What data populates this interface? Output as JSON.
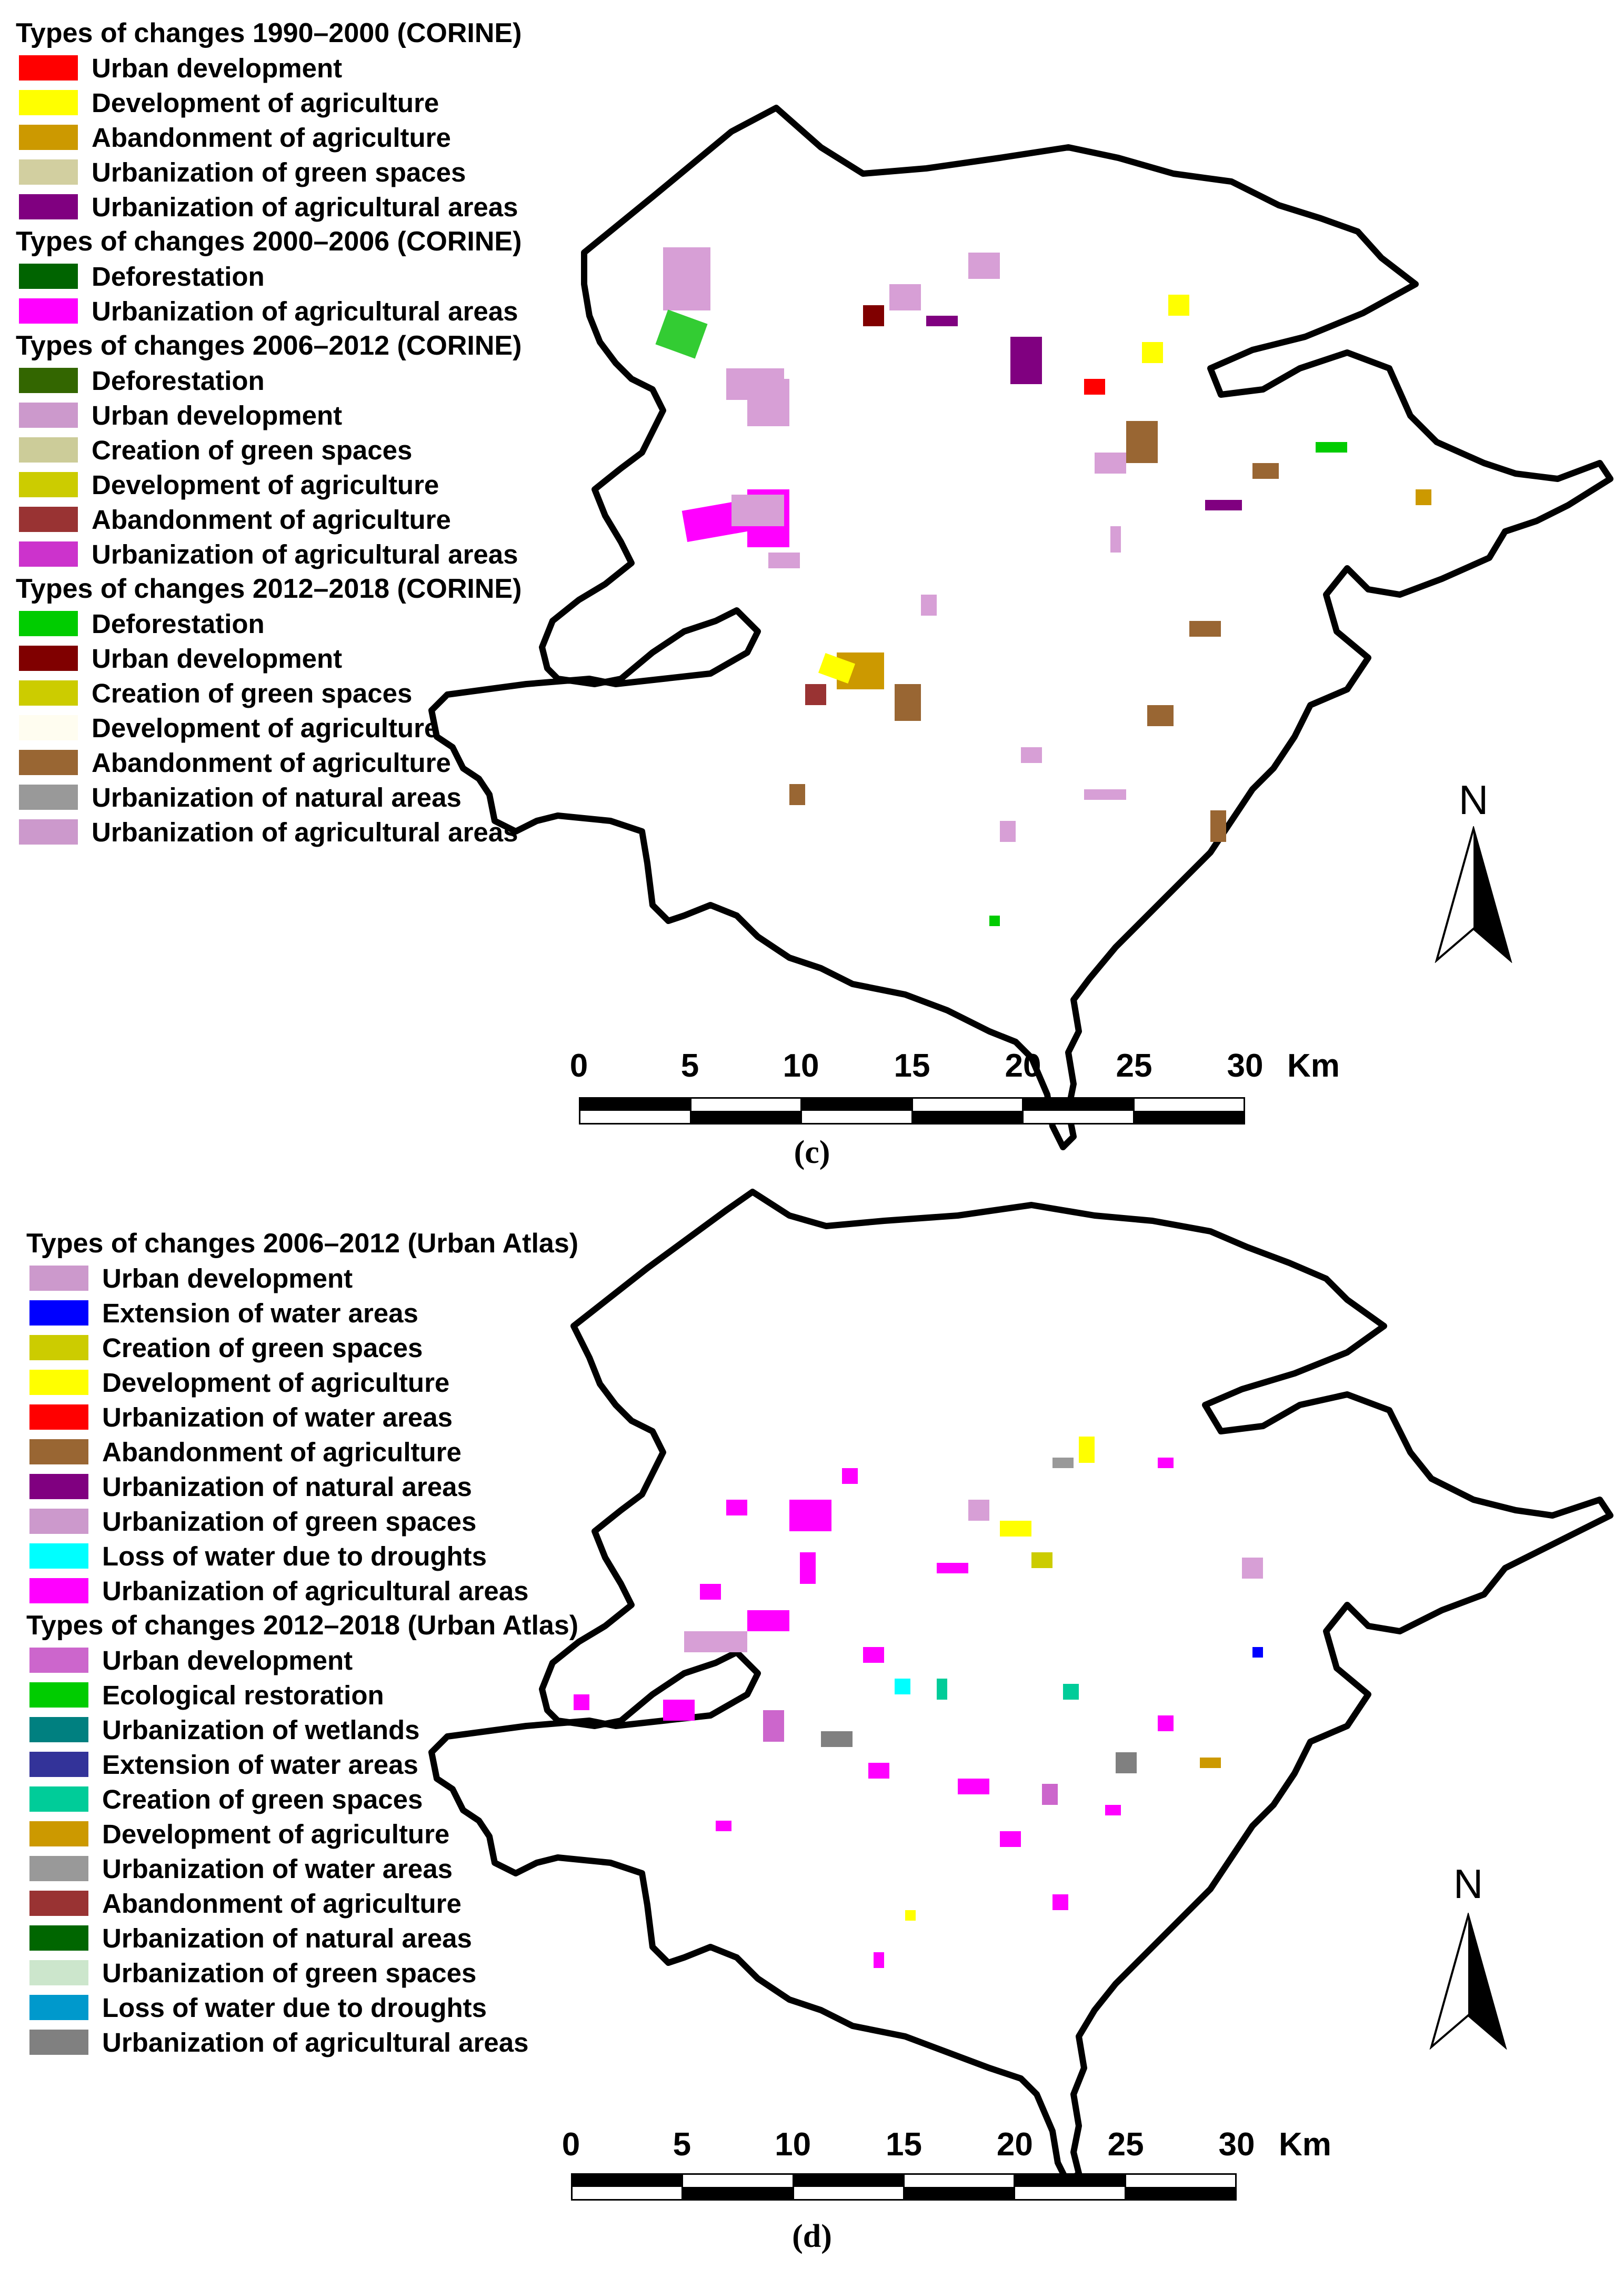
{
  "panel_c": {
    "caption": "(c)",
    "legend": [
      {
        "title": "Types of changes 1990–2000 (CORINE)",
        "items": [
          {
            "label": "Urban development",
            "color": "#ff0000"
          },
          {
            "label": "Development of agriculture",
            "color": "#ffff00"
          },
          {
            "label": "Abandonment of agriculture",
            "color": "#cc9900"
          },
          {
            "label": "Urbanization of green spaces",
            "color": "#d2cfa0"
          },
          {
            "label": "Urbanization of agricultural areas",
            "color": "#800080"
          }
        ]
      },
      {
        "title": "Types of changes 2000–2006 (CORINE)",
        "items": [
          {
            "label": "Deforestation",
            "color": "#006400"
          },
          {
            "label": "Urbanization of agricultural areas",
            "color": "#ff00ff"
          }
        ]
      },
      {
        "title": "Types of changes 2006–2012 (CORINE)",
        "items": [
          {
            "label": "Deforestation",
            "color": "#336600"
          },
          {
            "label": "Urban development",
            "color": "#cc99cc"
          },
          {
            "label": "Creation of green spaces",
            "color": "#cccc99"
          },
          {
            "label": "Development of agriculture",
            "color": "#cccc00"
          },
          {
            "label": "Abandonment of agriculture",
            "color": "#993333"
          },
          {
            "label": "Urbanization of agricultural areas",
            "color": "#cc33cc"
          }
        ]
      },
      {
        "title": "Types of changes 2012–2018 (CORINE)",
        "items": [
          {
            "label": "Deforestation",
            "color": "#00cc00"
          },
          {
            "label": "Urban development",
            "color": "#800000"
          },
          {
            "label": "Creation of green spaces",
            "color": "#cccc00"
          },
          {
            "label": "Development of agriculture",
            "color": "#fffdf0"
          },
          {
            "label": "Abandonment of agriculture",
            "color": "#996633"
          },
          {
            "label": "Urbanization of natural areas",
            "color": "#999999"
          },
          {
            "label": "Urbanization of agricultural areas",
            "color": "#cc99cc"
          }
        ]
      }
    ],
    "scale": {
      "ticks": [
        "0",
        "5",
        "10",
        "15",
        "20",
        "25",
        "30"
      ],
      "unit": "Km"
    },
    "north": "N"
  },
  "panel_d": {
    "caption": "(d)",
    "legend": [
      {
        "title": "Types of changes 2006–2012 (Urban Atlas)",
        "items": [
          {
            "label": "Urban development",
            "color": "#cc99cc"
          },
          {
            "label": "Extension of water areas",
            "color": "#0000ff"
          },
          {
            "label": "Creation of green spaces",
            "color": "#cccc00"
          },
          {
            "label": "Development of agriculture",
            "color": "#ffff00"
          },
          {
            "label": "Urbanization of water areas",
            "color": "#ff0000"
          },
          {
            "label": "Abandonment of agriculture",
            "color": "#996633"
          },
          {
            "label": "Urbanization of natural areas",
            "color": "#800080"
          },
          {
            "label": "Urbanization of green spaces",
            "color": "#cc99cc"
          },
          {
            "label": "Loss of water due to droughts",
            "color": "#00ffff"
          },
          {
            "label": "Urbanization of agricultural areas",
            "color": "#ff00ff"
          }
        ]
      },
      {
        "title": "Types of changes 2012–2018 (Urban Atlas)",
        "items": [
          {
            "label": "Urban development",
            "color": "#cc66cc"
          },
          {
            "label": "Ecological restoration",
            "color": "#00cc00"
          },
          {
            "label": "Urbanization of wetlands",
            "color": "#008080"
          },
          {
            "label": "Extension of water areas",
            "color": "#333399"
          },
          {
            "label": "Creation of green spaces",
            "color": "#00cc99"
          },
          {
            "label": "Development of agriculture",
            "color": "#cc9900"
          },
          {
            "label": "Urbanization of water areas",
            "color": "#999999"
          },
          {
            "label": "Abandonment of agriculture",
            "color": "#993333"
          },
          {
            "label": "Urbanization of natural areas",
            "color": "#006600"
          },
          {
            "label": "Urbanization of green spaces",
            "color": "#cce6cc"
          },
          {
            "label": "Loss of water due to droughts",
            "color": "#0099cc"
          },
          {
            "label": "Urbanization of agricultural areas",
            "color": "#808080"
          }
        ]
      }
    ],
    "scale": {
      "ticks": [
        "0",
        "5",
        "10",
        "15",
        "20",
        "25",
        "30"
      ],
      "unit": "Km"
    },
    "north": "N"
  }
}
